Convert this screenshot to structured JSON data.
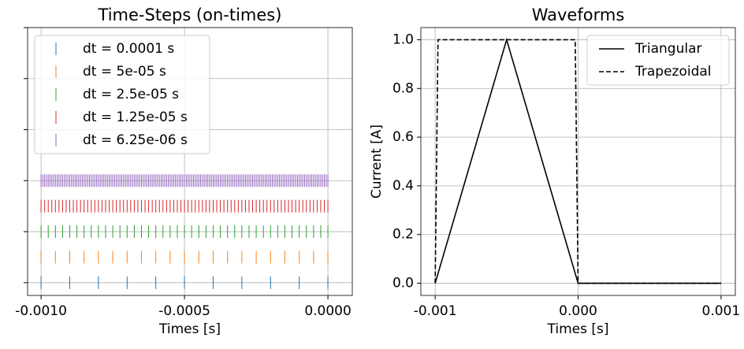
{
  "chart_data": [
    {
      "type": "event",
      "title": "Time-Steps (on-times)",
      "x_label": "Times [s]",
      "xlim": [
        -0.001047,
        8.5e-05
      ],
      "xticks": [
        {
          "value": -0.001,
          "label": "-0.0010"
        },
        {
          "value": -0.0005,
          "label": "-0.0005"
        },
        {
          "value": 0,
          "label": "0.0000"
        }
      ],
      "ylim": [
        -0.25,
        5
      ],
      "yticks": [
        0,
        1,
        2,
        3,
        4,
        5
      ],
      "grid": true,
      "legend": "upper left",
      "series": [
        {
          "name": "dt = 0.0001 s",
          "color": "#1f77b4",
          "x": [
            -0.001,
            -0.0009,
            -0.0008,
            -0.0007,
            -0.0006,
            -0.0005,
            -0.0004,
            -0.0003,
            -0.0002,
            -0.0001,
            0
          ]
        },
        {
          "name": "dt = 5e-05 s",
          "color": "#ff7f0e",
          "x": [
            -0.001,
            -0.00095,
            -0.0009,
            -0.00085,
            -0.0008,
            -0.00075,
            -0.0007,
            -0.00065,
            -0.0006,
            -0.00055,
            -0.0005,
            -0.00045,
            -0.0004,
            -0.00035,
            -0.0003,
            -0.00025,
            -0.0002,
            -0.00015,
            -0.0001,
            -5e-05,
            0
          ]
        },
        {
          "name": "dt = 2.5e-05 s",
          "color": "#2ca02c",
          "x": [
            -0.001,
            -0.000975,
            -0.00095,
            -0.000925,
            -0.0009,
            -0.000875,
            -0.00085,
            -0.000825,
            -0.0008,
            -0.000775,
            -0.00075,
            -0.000725,
            -0.0007,
            -0.000675,
            -0.00065,
            -0.000625,
            -0.0006,
            -0.000575,
            -0.00055,
            -0.000525,
            -0.0005,
            -0.000475,
            -0.00045,
            -0.000425,
            -0.0004,
            -0.000375,
            -0.00035,
            -0.000325,
            -0.0003,
            -0.000275,
            -0.00025,
            -0.000225,
            -0.0002,
            -0.000175,
            -0.00015,
            -0.000125,
            -0.0001,
            -7.5e-05,
            -5e-05,
            -2.5e-05,
            0
          ]
        },
        {
          "name": "dt = 1.25e-05 s",
          "color": "#d62728",
          "x": [
            -0.001,
            -0.0009875,
            -0.000975,
            -0.0009625,
            -0.00095,
            -0.0009375,
            -0.000925,
            -0.0009125,
            -0.0009,
            -0.0008875,
            -0.000875,
            -0.0008625,
            -0.00085,
            -0.0008375,
            -0.000825,
            -0.0008125,
            -0.0008,
            -0.0007875,
            -0.000775,
            -0.0007625,
            -0.00075,
            -0.0007375,
            -0.000725,
            -0.0007125,
            -0.0007,
            -0.0006875,
            -0.000675,
            -0.0006625,
            -0.00065,
            -0.0006375,
            -0.000625,
            -0.0006125,
            -0.0006,
            -0.0005875,
            -0.000575,
            -0.0005625,
            -0.00055,
            -0.0005375,
            -0.000525,
            -0.0005125,
            -0.0005,
            -0.0004875,
            -0.000475,
            -0.0004625,
            -0.00045,
            -0.0004375,
            -0.000425,
            -0.0004125,
            -0.0004,
            -0.0003875,
            -0.000375,
            -0.0003625,
            -0.00035,
            -0.0003375,
            -0.000325,
            -0.0003125,
            -0.0003,
            -0.0002875,
            -0.000275,
            -0.0002625,
            -0.00025,
            -0.0002375,
            -0.000225,
            -0.0002125,
            -0.0002,
            -0.0001875,
            -0.000175,
            -0.0001625,
            -0.00015,
            -0.0001375,
            -0.000125,
            -0.0001125,
            -0.0001,
            -8.75e-05,
            -7.5e-05,
            -6.25e-05,
            -5e-05,
            -3.75e-05,
            -2.5e-05,
            -1.25e-05,
            0
          ]
        },
        {
          "name": "dt = 6.25e-06 s",
          "color": "#9467bd",
          "x": [
            -0.001,
            -0.00099375,
            -0.0009875,
            -0.00098125,
            -0.000975,
            -0.00096875,
            -0.0009625,
            -0.00095625,
            -0.00095,
            -0.00094375,
            -0.0009375,
            -0.00093125,
            -0.000925,
            -0.00091875,
            -0.0009125,
            -0.00090625,
            -0.0009,
            -0.00089375,
            -0.0008875,
            -0.00088125,
            -0.000875,
            -0.00086875,
            -0.0008625,
            -0.00085625,
            -0.00085,
            -0.00084375,
            -0.0008375,
            -0.00083125,
            -0.000825,
            -0.00081875,
            -0.0008125,
            -0.00080625,
            -0.0008,
            -0.00079375,
            -0.0007875,
            -0.00078125,
            -0.000775,
            -0.00076875,
            -0.0007625,
            -0.00075625,
            -0.00075,
            -0.00074375,
            -0.0007375,
            -0.00073125,
            -0.000725,
            -0.00071875,
            -0.0007125,
            -0.00070625,
            -0.0007,
            -0.00069375,
            -0.0006875,
            -0.00068125,
            -0.000675,
            -0.00066875,
            -0.0006625,
            -0.00065625,
            -0.00065,
            -0.00064375,
            -0.0006375,
            -0.00063125,
            -0.000625,
            -0.00061875,
            -0.0006125,
            -0.00060625,
            -0.0006,
            -0.00059375,
            -0.0005875,
            -0.00058125,
            -0.000575,
            -0.00056875,
            -0.0005625,
            -0.00055625,
            -0.00055,
            -0.00054375,
            -0.0005375,
            -0.00053125,
            -0.000525,
            -0.00051875,
            -0.0005125,
            -0.00050625,
            -0.0005,
            -0.00049375,
            -0.0004875,
            -0.00048125,
            -0.000475,
            -0.00046875,
            -0.0004625,
            -0.00045625,
            -0.00045,
            -0.00044375,
            -0.0004375,
            -0.00043125,
            -0.000425,
            -0.00041875,
            -0.0004125,
            -0.00040625,
            -0.0004,
            -0.00039375,
            -0.0003875,
            -0.00038125,
            -0.000375,
            -0.00036875,
            -0.0003625,
            -0.00035625,
            -0.00035,
            -0.00034375,
            -0.0003375,
            -0.00033125,
            -0.000325,
            -0.00031875,
            -0.0003125,
            -0.00030625,
            -0.0003,
            -0.00029375,
            -0.0002875,
            -0.00028125,
            -0.000275,
            -0.00026875,
            -0.0002625,
            -0.00025625,
            -0.00025,
            -0.00024375,
            -0.0002375,
            -0.00023125,
            -0.000225,
            -0.00021875,
            -0.0002125,
            -0.00020625,
            -0.0002,
            -0.00019375,
            -0.0001875,
            -0.00018125,
            -0.000175,
            -0.00016875,
            -0.0001625,
            -0.00015625,
            -0.00015,
            -0.00014375,
            -0.0001375,
            -0.00013125,
            -0.000125,
            -0.00011875,
            -0.0001125,
            -0.00010625,
            -0.0001,
            -9.375e-05,
            -8.75e-05,
            -8.125e-05,
            -7.5e-05,
            -6.875e-05,
            -6.25e-05,
            -5.625e-05,
            -5e-05,
            -4.375e-05,
            -3.75e-05,
            -3.125e-05,
            -2.5e-05,
            -1.875e-05,
            -1.25e-05,
            -6.25e-06,
            0
          ]
        }
      ]
    },
    {
      "type": "line",
      "title": "Waveforms",
      "x_label": "Times [s]",
      "y_label": "Current [A]",
      "xlim": [
        -0.0011,
        0.0011
      ],
      "xticks": [
        {
          "value": -0.001,
          "label": "-0.001"
        },
        {
          "value": 0,
          "label": "0.000"
        },
        {
          "value": 0.001,
          "label": "0.001"
        }
      ],
      "ylim": [
        -0.05,
        1.05
      ],
      "yticks": [
        {
          "value": 0,
          "label": "0.0"
        },
        {
          "value": 0.2,
          "label": "0.2"
        },
        {
          "value": 0.4,
          "label": "0.4"
        },
        {
          "value": 0.6,
          "label": "0.6"
        },
        {
          "value": 0.8,
          "label": "0.8"
        },
        {
          "value": 1,
          "label": "1.0"
        }
      ],
      "grid": true,
      "legend": "upper right",
      "series": [
        {
          "name": "Triangular",
          "color": "#000000",
          "linestyle": "solid",
          "x": [
            -0.001,
            -0.0005,
            0,
            0.001
          ],
          "values": [
            0,
            1,
            0,
            0
          ]
        },
        {
          "name": "Trapezoidal",
          "color": "#000000",
          "linestyle": "dashed",
          "x": [
            -0.001,
            -0.00098,
            -2e-05,
            0,
            0.001
          ],
          "values": [
            0,
            1,
            1,
            0,
            0
          ]
        }
      ]
    }
  ]
}
